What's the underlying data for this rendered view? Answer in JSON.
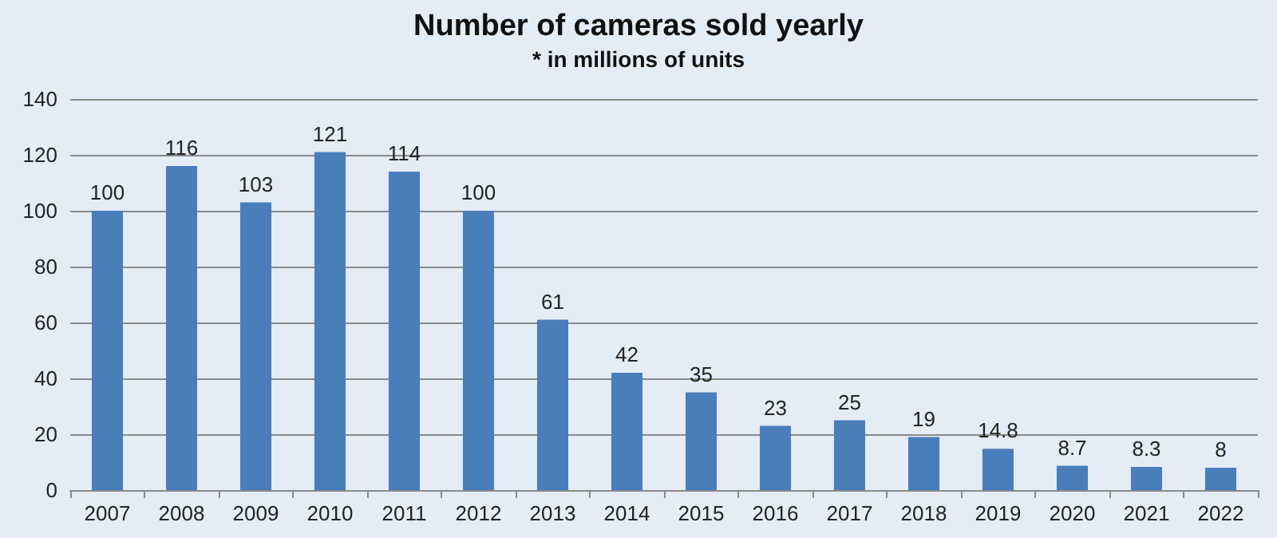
{
  "chart_data": {
    "type": "bar",
    "title": "Number of cameras sold yearly",
    "subtitle": "* in millions of units",
    "categories": [
      "2007",
      "2008",
      "2009",
      "2010",
      "2011",
      "2012",
      "2013",
      "2014",
      "2015",
      "2016",
      "2017",
      "2018",
      "2019",
      "2020",
      "2021",
      "2022"
    ],
    "values": [
      100,
      116,
      103,
      121,
      114,
      100,
      61,
      42,
      35,
      23,
      25,
      19,
      14.8,
      8.7,
      8.3,
      8
    ],
    "color": "#4a7ebb",
    "ylim": [
      0,
      140
    ],
    "yticks": [
      0,
      20,
      40,
      60,
      80,
      100,
      120,
      140
    ],
    "grid": "y",
    "data_labels": true
  }
}
